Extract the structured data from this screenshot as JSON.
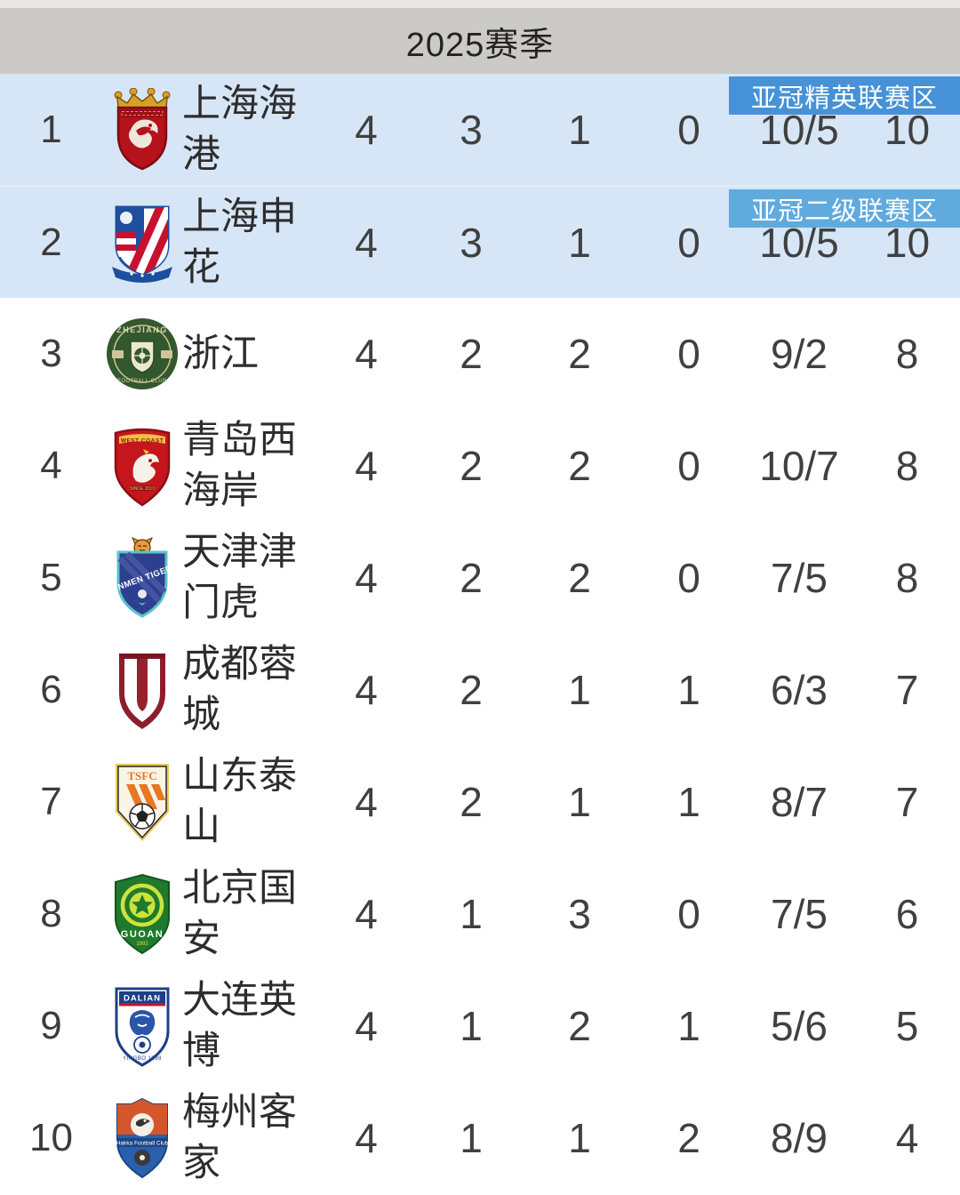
{
  "header": {
    "title": "2025赛季"
  },
  "zones": {
    "elite": {
      "label": "亚冠精英联赛区",
      "color": "#4792d6"
    },
    "league_two": {
      "label": "亚冠二级联赛区",
      "color": "#60aade"
    }
  },
  "colors": {
    "header_bg": "#cbcac6",
    "highlight_row_bg": "#d7e6f6",
    "row_bg": "#ffffff"
  },
  "table": {
    "rows": [
      {
        "rank": "1",
        "team": "上海海港",
        "logo": "shanghai-port",
        "played": "4",
        "wins": "3",
        "draws": "1",
        "losses": "0",
        "goals": "10/5",
        "points": "10",
        "zone": "elite",
        "highlighted": true
      },
      {
        "rank": "2",
        "team": "上海申花",
        "logo": "shanghai-shenhua",
        "played": "4",
        "wins": "3",
        "draws": "1",
        "losses": "0",
        "goals": "10/5",
        "points": "10",
        "zone": "league_two",
        "highlighted": true
      },
      {
        "rank": "3",
        "team": "浙江",
        "logo": "zhejiang",
        "played": "4",
        "wins": "2",
        "draws": "2",
        "losses": "0",
        "goals": "9/2",
        "points": "8"
      },
      {
        "rank": "4",
        "team": "青岛西海岸",
        "logo": "qingdao-west-coast",
        "played": "4",
        "wins": "2",
        "draws": "2",
        "losses": "0",
        "goals": "10/7",
        "points": "8"
      },
      {
        "rank": "5",
        "team": "天津津门虎",
        "logo": "tianjin-jinmen-tiger",
        "played": "4",
        "wins": "2",
        "draws": "2",
        "losses": "0",
        "goals": "7/5",
        "points": "8"
      },
      {
        "rank": "6",
        "team": "成都蓉城",
        "logo": "chengdu-rongcheng",
        "played": "4",
        "wins": "2",
        "draws": "1",
        "losses": "1",
        "goals": "6/3",
        "points": "7"
      },
      {
        "rank": "7",
        "team": "山东泰山",
        "logo": "shandong-taishan",
        "played": "4",
        "wins": "2",
        "draws": "1",
        "losses": "1",
        "goals": "8/7",
        "points": "7"
      },
      {
        "rank": "8",
        "team": "北京国安",
        "logo": "beijing-guoan",
        "played": "4",
        "wins": "1",
        "draws": "3",
        "losses": "0",
        "goals": "7/5",
        "points": "6"
      },
      {
        "rank": "9",
        "team": "大连英博",
        "logo": "dalian-yingbo",
        "played": "4",
        "wins": "1",
        "draws": "2",
        "losses": "1",
        "goals": "5/6",
        "points": "5"
      },
      {
        "rank": "10",
        "team": "梅州客家",
        "logo": "meizhou-hakka",
        "played": "4",
        "wins": "1",
        "draws": "1",
        "losses": "2",
        "goals": "8/9",
        "points": "4"
      }
    ]
  }
}
